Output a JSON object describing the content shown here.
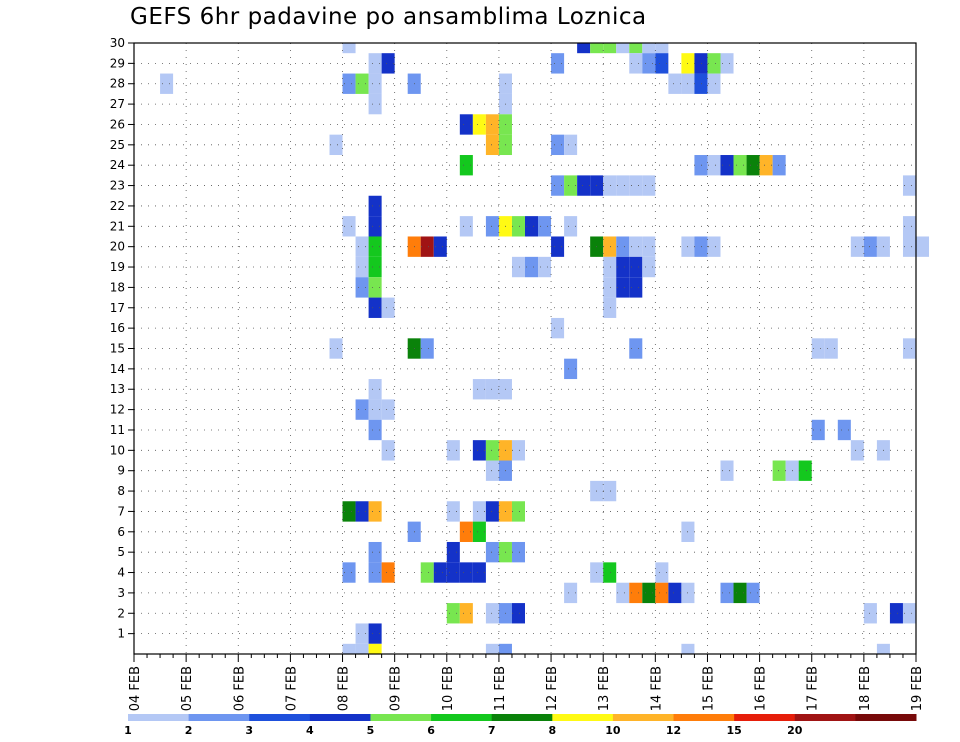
{
  "title": "GEFS 6hr padavine po ansamblima Loznica",
  "chart_data": {
    "type": "heatmap",
    "title": "GEFS 6hr padavine po ansamblima Loznica",
    "x_labels": [
      "04 FEB",
      "05 FEB",
      "06 FEB",
      "07 FEB",
      "08 FEB",
      "09 FEB",
      "10 FEB",
      "11 FEB",
      "12 FEB",
      "13 FEB",
      "14 FEB",
      "15 FEB",
      "16 FEB",
      "17 FEB",
      "18 FEB",
      "19 FEB"
    ],
    "y_labels": [
      "1",
      "2",
      "3",
      "4",
      "5",
      "6",
      "7",
      "8",
      "9",
      "10",
      "11",
      "12",
      "13",
      "14",
      "15",
      "16",
      "17",
      "18",
      "19",
      "20",
      "21",
      "22",
      "23",
      "24",
      "25",
      "26",
      "27",
      "28",
      "29",
      "30"
    ],
    "xlim_days": [
      0,
      15
    ],
    "ylim_members": [
      0,
      30
    ],
    "step_hours": 6,
    "grid": true,
    "legend_position": "bottom",
    "colorbar": {
      "labels": [
        "1",
        "2",
        "3",
        "4",
        "5",
        "6",
        "7",
        "8",
        "10",
        "12",
        "15",
        "20"
      ],
      "colors": [
        "#b4c8f5",
        "#6e96f0",
        "#1e50dc",
        "#1432c8",
        "#78e650",
        "#14c81e",
        "#0a820a",
        "#fffa14",
        "#ffb428",
        "#ff7d0a",
        "#e61e0a",
        "#a01414",
        "#780a0a"
      ]
    },
    "cells": [
      {
        "m": 30,
        "t": "08.0",
        "c": 1
      },
      {
        "m": 30,
        "t": "12.5",
        "c": 4
      },
      {
        "m": 30,
        "t": "12.75",
        "c": 5
      },
      {
        "m": 30,
        "t": "13.0",
        "c": 5
      },
      {
        "m": 30,
        "t": "13.25",
        "c": 1
      },
      {
        "m": 30,
        "t": "13.5",
        "c": 5
      },
      {
        "m": 30,
        "t": "13.75",
        "c": 1
      },
      {
        "m": 30,
        "t": "14.0",
        "c": 1
      },
      {
        "m": 29,
        "t": "08.5",
        "c": 1
      },
      {
        "m": 29,
        "t": "08.75",
        "c": 4
      },
      {
        "m": 29,
        "t": "12.0",
        "c": 2
      },
      {
        "m": 29,
        "t": "13.5",
        "c": 1
      },
      {
        "m": 29,
        "t": "13.75",
        "c": 2
      },
      {
        "m": 29,
        "t": "14.0",
        "c": 3
      },
      {
        "m": 29,
        "t": "14.5",
        "c": 8
      },
      {
        "m": 29,
        "t": "14.75",
        "c": 4
      },
      {
        "m": 29,
        "t": "15.0",
        "c": 5
      },
      {
        "m": 29,
        "t": "15.25",
        "c": 1
      },
      {
        "m": 28,
        "t": "04.5",
        "c": 1
      },
      {
        "m": 28,
        "t": "08.0",
        "c": 2
      },
      {
        "m": 28,
        "t": "08.25",
        "c": 5
      },
      {
        "m": 28,
        "t": "08.5",
        "c": 1
      },
      {
        "m": 28,
        "t": "09.25",
        "c": 2
      },
      {
        "m": 28,
        "t": "11.0",
        "c": 1
      },
      {
        "m": 28,
        "t": "14.25",
        "c": 1
      },
      {
        "m": 28,
        "t": "14.5",
        "c": 1
      },
      {
        "m": 28,
        "t": "14.75",
        "c": 3
      },
      {
        "m": 28,
        "t": "15.0",
        "c": 1
      },
      {
        "m": 27,
        "t": "08.5",
        "c": 1
      },
      {
        "m": 27,
        "t": "11.0",
        "c": 1
      },
      {
        "m": 26,
        "t": "10.25",
        "c": 4
      },
      {
        "m": 26,
        "t": "10.5",
        "c": 8
      },
      {
        "m": 26,
        "t": "10.75",
        "c": 9
      },
      {
        "m": 26,
        "t": "11.0",
        "c": 5
      },
      {
        "m": 25,
        "t": "07.75",
        "c": 1
      },
      {
        "m": 25,
        "t": "10.75",
        "c": 9
      },
      {
        "m": 25,
        "t": "11.0",
        "c": 5
      },
      {
        "m": 25,
        "t": "12.0",
        "c": 2
      },
      {
        "m": 25,
        "t": "12.25",
        "c": 1
      },
      {
        "m": 24,
        "t": "10.25",
        "c": 6
      },
      {
        "m": 24,
        "t": "14.75",
        "c": 2
      },
      {
        "m": 24,
        "t": "15.0",
        "c": 1
      },
      {
        "m": 24,
        "t": "15.25",
        "c": 4
      },
      {
        "m": 24,
        "t": "15.5",
        "c": 5
      },
      {
        "m": 24,
        "t": "15.75",
        "c": 7
      },
      {
        "m": 24,
        "t": "16.0",
        "c": 9
      },
      {
        "m": 24,
        "t": "16.25",
        "c": 2
      },
      {
        "m": 23,
        "t": "12.0",
        "c": 2
      },
      {
        "m": 23,
        "t": "12.25",
        "c": 5
      },
      {
        "m": 23,
        "t": "12.5",
        "c": 4
      },
      {
        "m": 23,
        "t": "12.75",
        "c": 4
      },
      {
        "m": 23,
        "t": "13.0",
        "c": 1
      },
      {
        "m": 23,
        "t": "13.25",
        "c": 1
      },
      {
        "m": 23,
        "t": "13.5",
        "c": 1
      },
      {
        "m": 23,
        "t": "13.75",
        "c": 1
      },
      {
        "m": 23,
        "t": "18.75",
        "c": 1
      },
      {
        "m": 22,
        "t": "08.5",
        "c": 4
      },
      {
        "m": 21,
        "t": "08.0",
        "c": 1
      },
      {
        "m": 21,
        "t": "08.5",
        "c": 4
      },
      {
        "m": 21,
        "t": "10.25",
        "c": 1
      },
      {
        "m": 21,
        "t": "10.75",
        "c": 2
      },
      {
        "m": 21,
        "t": "11.0",
        "c": 8
      },
      {
        "m": 21,
        "t": "11.25",
        "c": 5
      },
      {
        "m": 21,
        "t": "11.5",
        "c": 4
      },
      {
        "m": 21,
        "t": "11.75",
        "c": 2
      },
      {
        "m": 21,
        "t": "12.25",
        "c": 1
      },
      {
        "m": 21,
        "t": "18.75",
        "c": 1
      },
      {
        "m": 20,
        "t": "08.25",
        "c": 1
      },
      {
        "m": 20,
        "t": "08.5",
        "c": 6
      },
      {
        "m": 20,
        "t": "09.25",
        "c": 10
      },
      {
        "m": 20,
        "t": "09.5",
        "c": 12
      },
      {
        "m": 20,
        "t": "09.75",
        "c": 4
      },
      {
        "m": 20,
        "t": "12.0",
        "c": 4
      },
      {
        "m": 20,
        "t": "12.75",
        "c": 7
      },
      {
        "m": 20,
        "t": "13.0",
        "c": 9
      },
      {
        "m": 20,
        "t": "13.25",
        "c": 2
      },
      {
        "m": 20,
        "t": "13.5",
        "c": 1
      },
      {
        "m": 20,
        "t": "13.75",
        "c": 1
      },
      {
        "m": 20,
        "t": "14.5",
        "c": 1
      },
      {
        "m": 20,
        "t": "14.75",
        "c": 2
      },
      {
        "m": 20,
        "t": "15.0",
        "c": 1
      },
      {
        "m": 20,
        "t": "17.75",
        "c": 1
      },
      {
        "m": 20,
        "t": "18.0",
        "c": 2
      },
      {
        "m": 20,
        "t": "18.25",
        "c": 1
      },
      {
        "m": 20,
        "t": "18.75",
        "c": 1
      },
      {
        "m": 20,
        "t": "19.0",
        "c": 1
      },
      {
        "m": 19,
        "t": "08.25",
        "c": 1
      },
      {
        "m": 19,
        "t": "08.5",
        "c": 6
      },
      {
        "m": 19,
        "t": "11.25",
        "c": 1
      },
      {
        "m": 19,
        "t": "11.5",
        "c": 2
      },
      {
        "m": 19,
        "t": "11.75",
        "c": 1
      },
      {
        "m": 19,
        "t": "13.0",
        "c": 1
      },
      {
        "m": 19,
        "t": "13.25",
        "c": 4
      },
      {
        "m": 19,
        "t": "13.5",
        "c": 4
      },
      {
        "m": 19,
        "t": "13.75",
        "c": 1
      },
      {
        "m": 18,
        "t": "08.25",
        "c": 2
      },
      {
        "m": 18,
        "t": "08.5",
        "c": 5
      },
      {
        "m": 18,
        "t": "13.0",
        "c": 1
      },
      {
        "m": 18,
        "t": "13.25",
        "c": 4
      },
      {
        "m": 18,
        "t": "13.5",
        "c": 4
      },
      {
        "m": 17,
        "t": "08.5",
        "c": 4
      },
      {
        "m": 17,
        "t": "08.75",
        "c": 1
      },
      {
        "m": 17,
        "t": "13.0",
        "c": 1
      },
      {
        "m": 16,
        "t": "12.0",
        "c": 1
      },
      {
        "m": 15,
        "t": "07.75",
        "c": 1
      },
      {
        "m": 15,
        "t": "09.25",
        "c": 7
      },
      {
        "m": 15,
        "t": "09.5",
        "c": 2
      },
      {
        "m": 15,
        "t": "13.5",
        "c": 2
      },
      {
        "m": 15,
        "t": "17.0",
        "c": 1
      },
      {
        "m": 15,
        "t": "17.25",
        "c": 1
      },
      {
        "m": 15,
        "t": "18.75",
        "c": 1
      },
      {
        "m": 14,
        "t": "12.25",
        "c": 2
      },
      {
        "m": 13,
        "t": "08.5",
        "c": 1
      },
      {
        "m": 13,
        "t": "10.5",
        "c": 1
      },
      {
        "m": 13,
        "t": "10.75",
        "c": 1
      },
      {
        "m": 13,
        "t": "11.0",
        "c": 1
      },
      {
        "m": 12,
        "t": "08.25",
        "c": 2
      },
      {
        "m": 12,
        "t": "08.5",
        "c": 1
      },
      {
        "m": 12,
        "t": "08.75",
        "c": 1
      },
      {
        "m": 11,
        "t": "08.5",
        "c": 2
      },
      {
        "m": 11,
        "t": "17.0",
        "c": 2
      },
      {
        "m": 11,
        "t": "17.5",
        "c": 2
      },
      {
        "m": 10,
        "t": "08.75",
        "c": 1
      },
      {
        "m": 10,
        "t": "10.0",
        "c": 1
      },
      {
        "m": 10,
        "t": "10.5",
        "c": 4
      },
      {
        "m": 10,
        "t": "10.75",
        "c": 5
      },
      {
        "m": 10,
        "t": "11.0",
        "c": 9
      },
      {
        "m": 10,
        "t": "11.25",
        "c": 1
      },
      {
        "m": 10,
        "t": "17.75",
        "c": 1
      },
      {
        "m": 10,
        "t": "18.25",
        "c": 1
      },
      {
        "m": 9,
        "t": "10.75",
        "c": 1
      },
      {
        "m": 9,
        "t": "11.0",
        "c": 2
      },
      {
        "m": 9,
        "t": "15.25",
        "c": 1
      },
      {
        "m": 9,
        "t": "16.25",
        "c": 5
      },
      {
        "m": 9,
        "t": "16.5",
        "c": 1
      },
      {
        "m": 9,
        "t": "16.75",
        "c": 6
      },
      {
        "m": 8,
        "t": "12.75",
        "c": 1
      },
      {
        "m": 8,
        "t": "13.0",
        "c": 1
      },
      {
        "m": 7,
        "t": "08.0",
        "c": 7
      },
      {
        "m": 7,
        "t": "08.25",
        "c": 4
      },
      {
        "m": 7,
        "t": "08.5",
        "c": 9
      },
      {
        "m": 7,
        "t": "10.0",
        "c": 1
      },
      {
        "m": 7,
        "t": "10.5",
        "c": 1
      },
      {
        "m": 7,
        "t": "10.75",
        "c": 4
      },
      {
        "m": 7,
        "t": "11.0",
        "c": 9
      },
      {
        "m": 7,
        "t": "11.25",
        "c": 5
      },
      {
        "m": 6,
        "t": "09.25",
        "c": 2
      },
      {
        "m": 6,
        "t": "10.25",
        "c": 10
      },
      {
        "m": 6,
        "t": "10.5",
        "c": 6
      },
      {
        "m": 6,
        "t": "14.5",
        "c": 1
      },
      {
        "m": 5,
        "t": "08.5",
        "c": 2
      },
      {
        "m": 5,
        "t": "10.0",
        "c": 4
      },
      {
        "m": 5,
        "t": "10.75",
        "c": 2
      },
      {
        "m": 5,
        "t": "11.0",
        "c": 5
      },
      {
        "m": 5,
        "t": "11.25",
        "c": 2
      },
      {
        "m": 4,
        "t": "08.0",
        "c": 2
      },
      {
        "m": 4,
        "t": "08.5",
        "c": 2
      },
      {
        "m": 4,
        "t": "08.75",
        "c": 10
      },
      {
        "m": 4,
        "t": "09.5",
        "c": 5
      },
      {
        "m": 4,
        "t": "09.75",
        "c": 4
      },
      {
        "m": 4,
        "t": "10.0",
        "c": 4
      },
      {
        "m": 4,
        "t": "10.25",
        "c": 4
      },
      {
        "m": 4,
        "t": "10.5",
        "c": 4
      },
      {
        "m": 4,
        "t": "12.75",
        "c": 1
      },
      {
        "m": 4,
        "t": "13.0",
        "c": 6
      },
      {
        "m": 4,
        "t": "14.0",
        "c": 1
      },
      {
        "m": 3,
        "t": "12.25",
        "c": 1
      },
      {
        "m": 3,
        "t": "13.25",
        "c": 1
      },
      {
        "m": 3,
        "t": "13.5",
        "c": 10
      },
      {
        "m": 3,
        "t": "13.75",
        "c": 7
      },
      {
        "m": 3,
        "t": "14.0",
        "c": 10
      },
      {
        "m": 3,
        "t": "14.25",
        "c": 4
      },
      {
        "m": 3,
        "t": "14.5",
        "c": 1
      },
      {
        "m": 3,
        "t": "15.25",
        "c": 2
      },
      {
        "m": 3,
        "t": "15.5",
        "c": 7
      },
      {
        "m": 3,
        "t": "15.75",
        "c": 2
      },
      {
        "m": 2,
        "t": "10.0",
        "c": 5
      },
      {
        "m": 2,
        "t": "10.25",
        "c": 9
      },
      {
        "m": 2,
        "t": "10.75",
        "c": 1
      },
      {
        "m": 2,
        "t": "11.0",
        "c": 2
      },
      {
        "m": 2,
        "t": "11.25",
        "c": 4
      },
      {
        "m": 2,
        "t": "18.0",
        "c": 1
      },
      {
        "m": 2,
        "t": "18.5",
        "c": 4
      },
      {
        "m": 2,
        "t": "18.75",
        "c": 1
      },
      {
        "m": 1,
        "t": "08.25",
        "c": 1
      },
      {
        "m": 1,
        "t": "08.5",
        "c": 4
      },
      {
        "m": 0,
        "t": "08.0",
        "c": 1
      },
      {
        "m": 0,
        "t": "08.25",
        "c": 1
      },
      {
        "m": 0,
        "t": "08.5",
        "c": 8
      },
      {
        "m": 0,
        "t": "10.75",
        "c": 1
      },
      {
        "m": 0,
        "t": "11.0",
        "c": 2
      },
      {
        "m": 0,
        "t": "14.5",
        "c": 1
      },
      {
        "m": 0,
        "t": "18.25",
        "c": 1
      }
    ]
  }
}
